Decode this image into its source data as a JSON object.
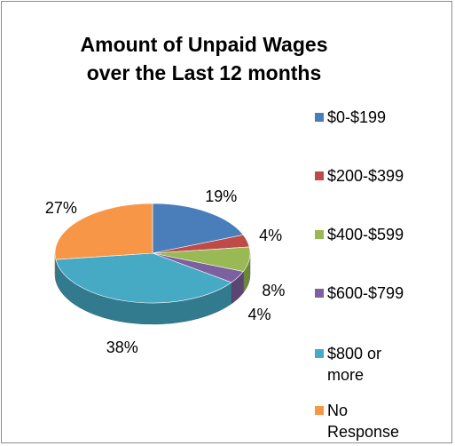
{
  "chart_data": {
    "type": "pie",
    "title": "Amount of Unpaid Wages over the Last 12 months",
    "categories": [
      "$0-$199",
      "$200-$399",
      "$400-$599",
      "$600-$799",
      "$800 or more",
      "No Response"
    ],
    "values": [
      19,
      4,
      8,
      4,
      38,
      27
    ],
    "value_labels": [
      "19%",
      "4%",
      "8%",
      "4%",
      "38%",
      "27%"
    ],
    "colors": [
      "#4a7ebb",
      "#be4b48",
      "#98b954",
      "#7d60a0",
      "#46aac5",
      "#f79646"
    ],
    "legend": "right"
  }
}
